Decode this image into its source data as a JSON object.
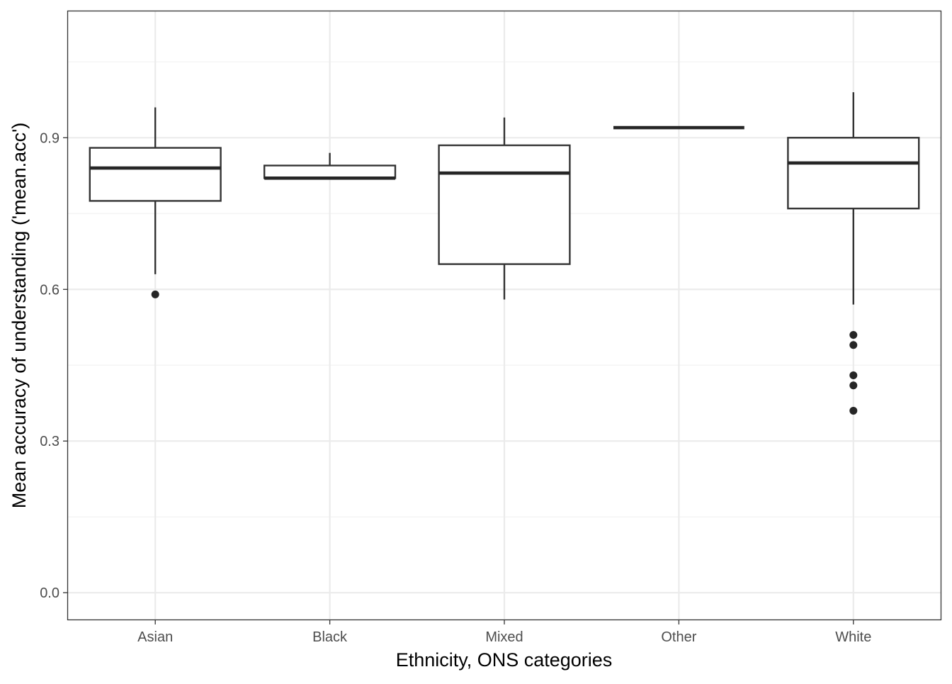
{
  "chart_data": {
    "type": "boxplot",
    "title": "",
    "xlabel": "Ethnicity, ONS categories",
    "ylabel": "Mean accuracy of understanding ('mean.acc')",
    "ylim": [
      -0.053,
      1.15
    ],
    "y_ticks": [
      0.0,
      0.3,
      0.6,
      0.9
    ],
    "y_tick_labels": [
      "0.0",
      "0.3",
      "0.6",
      "0.9"
    ],
    "y_minor_ticks": [
      0.15,
      0.45,
      0.75,
      1.05
    ],
    "grid": true,
    "legend": "none",
    "categories": [
      "Asian",
      "Black",
      "Mixed",
      "Other",
      "White"
    ],
    "boxes": [
      {
        "category": "Asian",
        "whisker_low": 0.63,
        "q1": 0.775,
        "median": 0.84,
        "q3": 0.88,
        "whisker_high": 0.96,
        "outliers": [
          0.59
        ]
      },
      {
        "category": "Black",
        "whisker_low": 0.82,
        "q1": 0.82,
        "median": 0.82,
        "q3": 0.845,
        "whisker_high": 0.87,
        "outliers": []
      },
      {
        "category": "Mixed",
        "whisker_low": 0.58,
        "q1": 0.65,
        "median": 0.83,
        "q3": 0.885,
        "whisker_high": 0.94,
        "outliers": []
      },
      {
        "category": "Other",
        "whisker_low": 0.92,
        "q1": 0.92,
        "median": 0.92,
        "q3": 0.92,
        "whisker_high": 0.92,
        "outliers": []
      },
      {
        "category": "White",
        "whisker_low": 0.57,
        "q1": 0.76,
        "median": 0.85,
        "q3": 0.9,
        "whisker_high": 0.99,
        "outliers": [
          0.51,
          0.49,
          0.43,
          0.41,
          0.36
        ]
      }
    ],
    "colors": {
      "panel_border": "#333333",
      "grid_major": "#ebebeb",
      "grid_minor": "#f3f3f3",
      "box_stroke": "#333333",
      "median": "#262626",
      "outlier": "#262626",
      "box_fill": "#ffffff"
    }
  }
}
